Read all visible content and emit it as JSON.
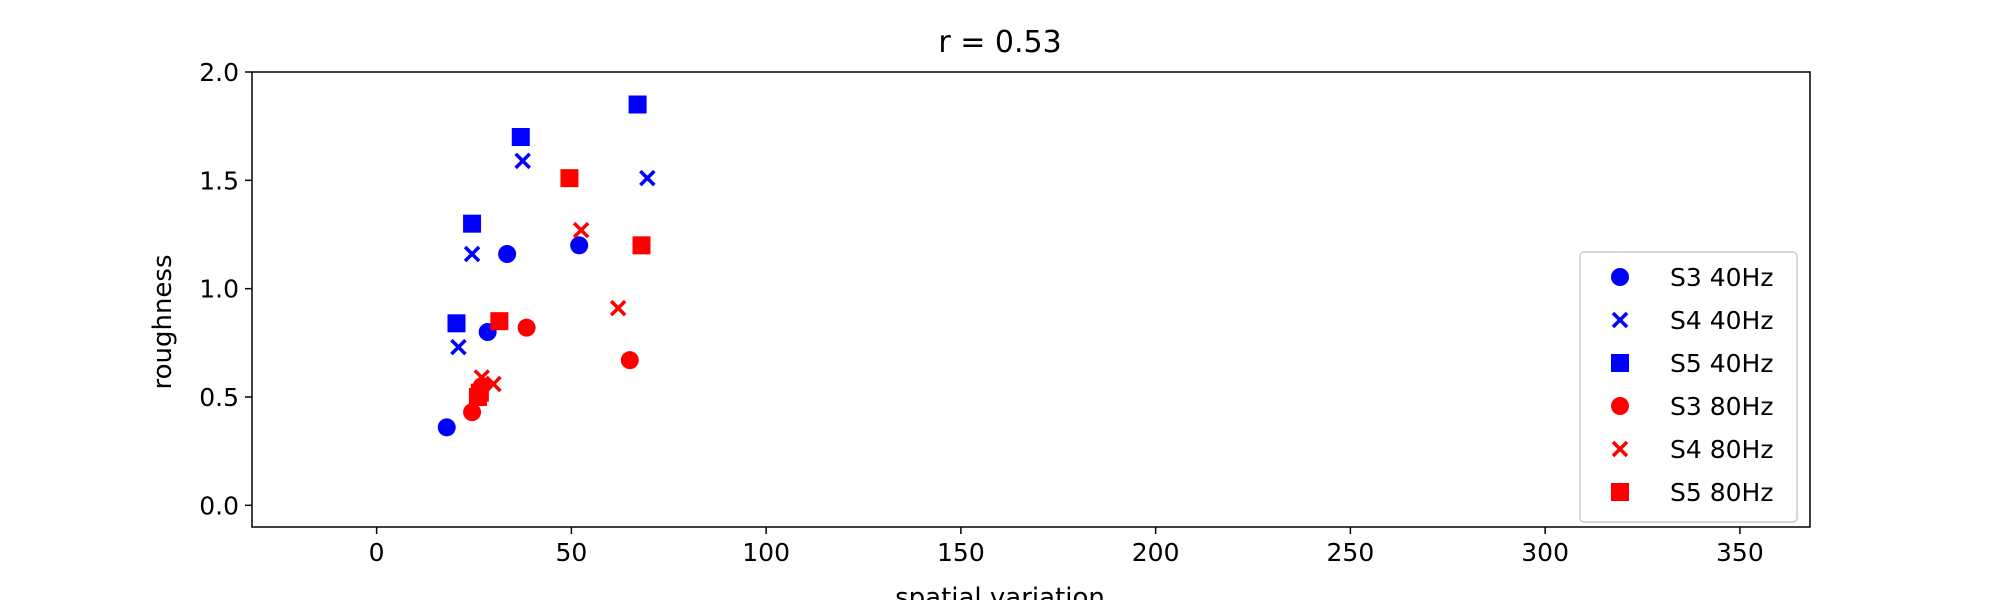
{
  "chart_data": {
    "type": "scatter",
    "title": "r = 0.53",
    "xlabel": "spatial variation",
    "ylabel": "roughness",
    "xlim": [
      -32,
      368
    ],
    "ylim": [
      -0.1,
      2.0
    ],
    "xticks": [
      0,
      50,
      100,
      150,
      200,
      250,
      300,
      350
    ],
    "yticks": [
      0.0,
      0.5,
      1.0,
      1.5,
      2.0
    ],
    "xtick_labels": [
      "0",
      "50",
      "100",
      "150",
      "200",
      "250",
      "300",
      "350"
    ],
    "ytick_labels": [
      "0.0",
      "0.5",
      "1.0",
      "1.5",
      "2.0"
    ],
    "grid": false,
    "legend_position": "lower-right",
    "series": [
      {
        "name": "S3 40Hz",
        "marker": "circle",
        "color": "#0000ff",
        "points": [
          [
            18,
            0.36
          ],
          [
            28.5,
            0.8
          ],
          [
            33.5,
            1.16
          ],
          [
            52,
            1.2
          ]
        ]
      },
      {
        "name": "S4 40Hz",
        "marker": "x",
        "color": "#0000ff",
        "points": [
          [
            21,
            0.73
          ],
          [
            24.5,
            1.16
          ],
          [
            37.5,
            1.59
          ],
          [
            69.5,
            1.51
          ]
        ]
      },
      {
        "name": "S5 40Hz",
        "marker": "square",
        "color": "#0000ff",
        "points": [
          [
            20.5,
            0.84
          ],
          [
            24.5,
            1.3
          ],
          [
            37,
            1.7
          ],
          [
            67,
            1.85
          ]
        ]
      },
      {
        "name": "S3 80Hz",
        "marker": "circle",
        "color": "#ff0000",
        "points": [
          [
            24.5,
            0.43
          ],
          [
            27,
            0.55
          ],
          [
            38.5,
            0.82
          ],
          [
            65,
            0.67
          ]
        ]
      },
      {
        "name": "S4 80Hz",
        "marker": "x",
        "color": "#ff0000",
        "points": [
          [
            27,
            0.59
          ],
          [
            30,
            0.56
          ],
          [
            52.5,
            1.27
          ],
          [
            62,
            0.91
          ]
        ]
      },
      {
        "name": "S5 80Hz",
        "marker": "square",
        "color": "#ff0000",
        "points": [
          [
            26,
            0.5
          ],
          [
            26.5,
            0.52
          ],
          [
            31.5,
            0.85
          ],
          [
            49.5,
            1.51
          ],
          [
            68,
            1.2
          ]
        ]
      }
    ]
  }
}
